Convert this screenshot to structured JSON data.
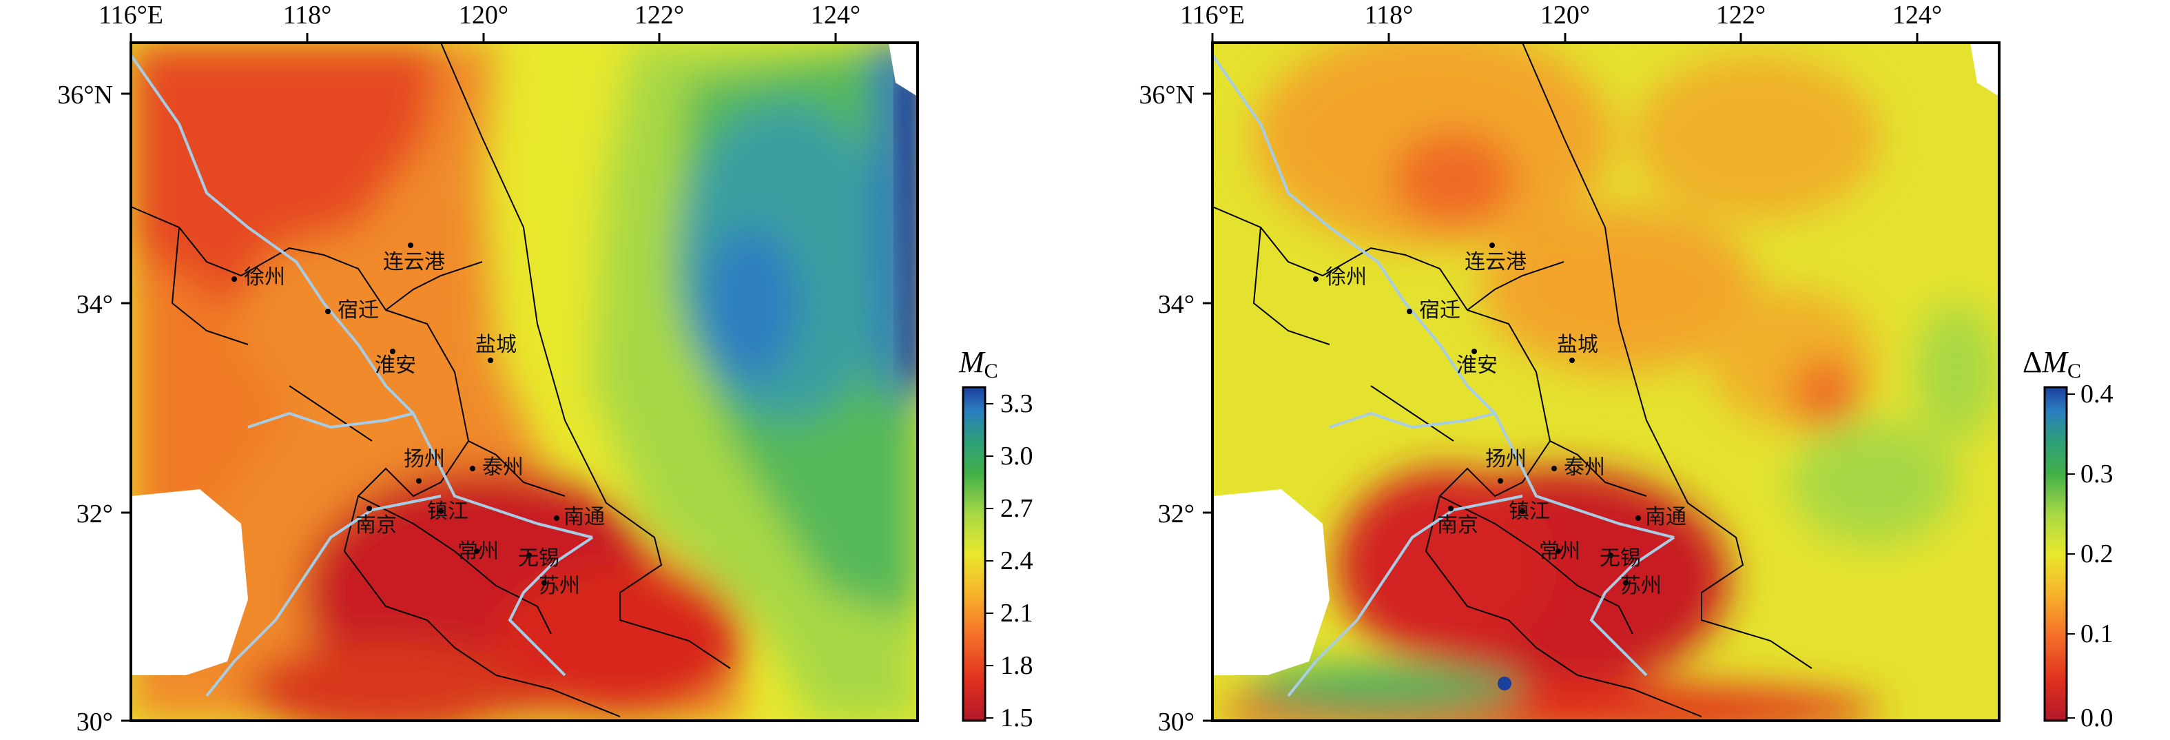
{
  "maps": [
    {
      "id": "mc",
      "lon_ticks": [
        "116°E",
        "118°",
        "120°",
        "122°",
        "124°"
      ],
      "lat_ticks": [
        "36°N",
        "34°",
        "32°",
        "30°"
      ],
      "colorbar": {
        "title_main": "M",
        "title_sub": "C",
        "title_prefix": "",
        "ticks": [
          "3.3",
          "3.0",
          "2.7",
          "2.4",
          "2.1",
          "1.8",
          "1.5"
        ],
        "range": [
          1.5,
          3.4
        ]
      }
    },
    {
      "id": "dmc",
      "lon_ticks": [
        "116°E",
        "118°",
        "120°",
        "122°",
        "124°"
      ],
      "lat_ticks": [
        "36°N",
        "34°",
        "32°",
        "30°"
      ],
      "colorbar": {
        "title_main": "M",
        "title_sub": "C",
        "title_prefix": "Δ",
        "ticks": [
          "0.4",
          "0.3",
          "0.2",
          "0.1",
          "0.0"
        ],
        "range": [
          0.0,
          0.42
        ]
      }
    }
  ],
  "cities": [
    "徐州",
    "宿迁",
    "连云港",
    "淮安",
    "盐城",
    "扬州",
    "泰州",
    "南京",
    "镇江",
    "南通",
    "常州",
    "无锡",
    "苏州"
  ],
  "colormap": [
    "#b2182b",
    "#e0301e",
    "#f46d2a",
    "#f7b32b",
    "#e8e82d",
    "#a8d845",
    "#43b04a",
    "#2e9f7a",
    "#2a7ec0",
    "#1d3f9c"
  ]
}
